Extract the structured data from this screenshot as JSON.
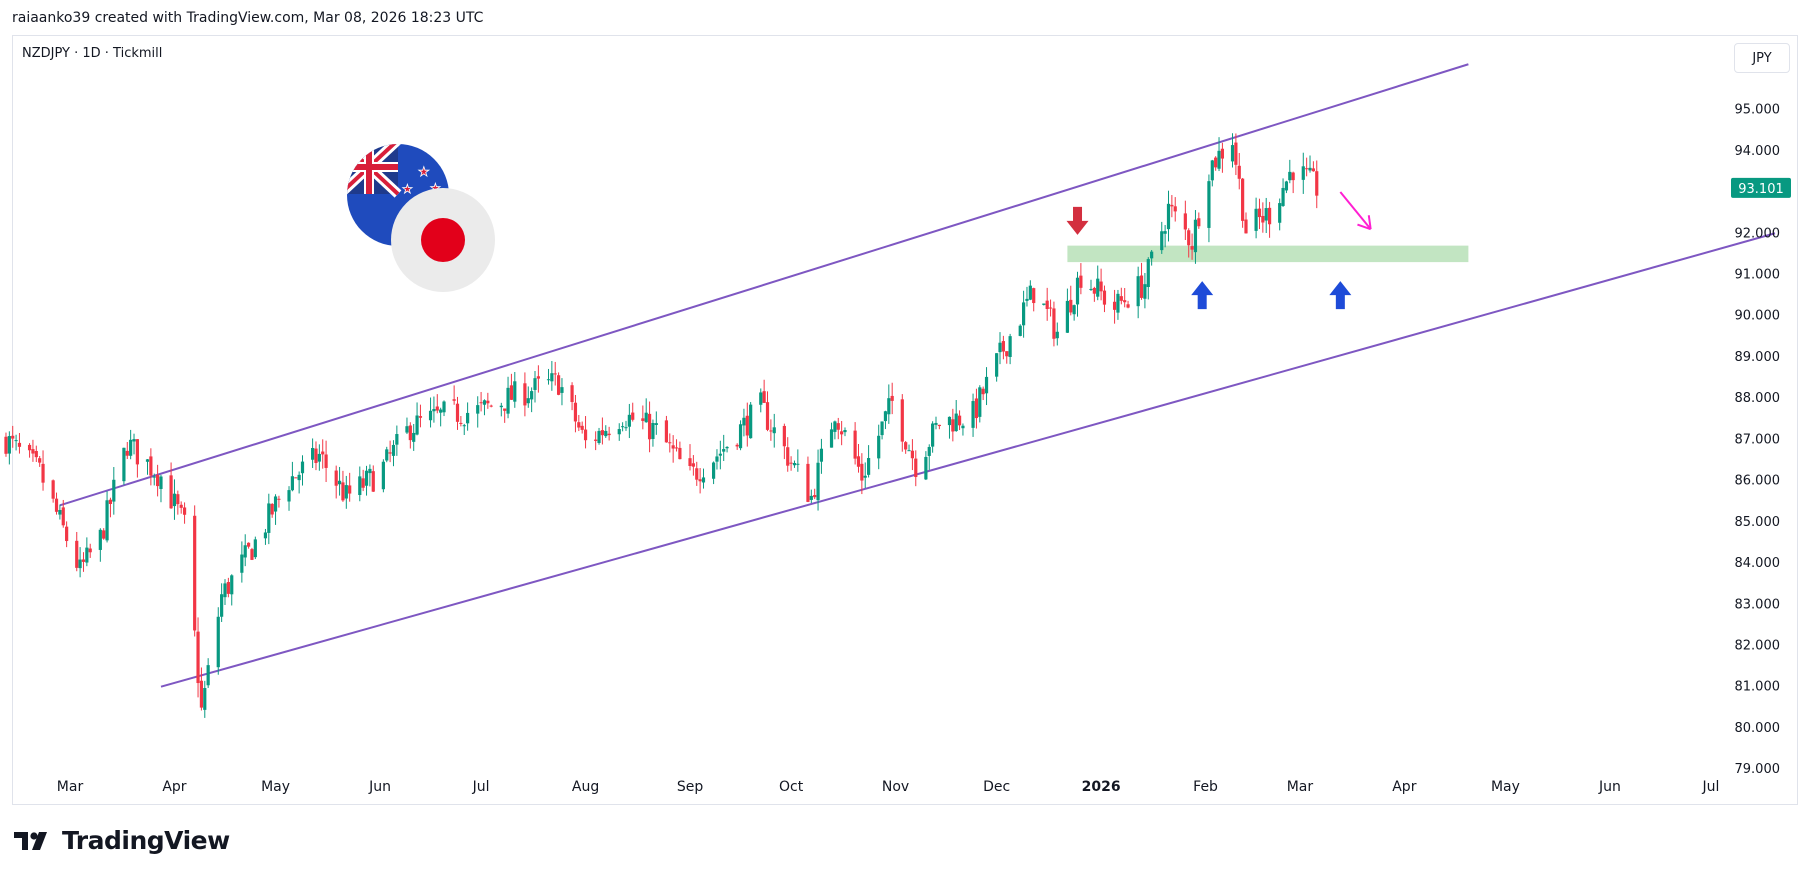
{
  "header": {
    "attribution": "raiaanko39 created with TradingView.com, Mar 08, 2026 18:23 UTC"
  },
  "symbol": {
    "label": "NZDJPY · 1D · Tickmill"
  },
  "currency_button": {
    "label": "JPY"
  },
  "footer": {
    "brand": "TradingView"
  },
  "colors": {
    "up": "#089981",
    "down": "#f23645",
    "channel": "#7e57c2",
    "zone": "#b7e1b7",
    "down_arrow": "#d32f3f",
    "up_arrow": "#1e4bd8",
    "projection": "#ff1fd2",
    "price_tag": "#089981"
  },
  "icons": {
    "flags": "nzd-jpy-flags-icon",
    "logo": "tradingview-logo-icon"
  },
  "chart_data": {
    "type": "candlestick",
    "ylim": [
      78.3,
      96.3
    ],
    "y_ticks": [
      95,
      94,
      93,
      92,
      91,
      90,
      89,
      88,
      87,
      86,
      85,
      84,
      83,
      82,
      81,
      80,
      79
    ],
    "y_tick_labels": [
      "95.000",
      "94.000",
      "93.000",
      "92.000",
      "91.000",
      "90.000",
      "89.000",
      "88.000",
      "87.000",
      "86.000",
      "85.000",
      "84.000",
      "83.000",
      "82.000",
      "81.000",
      "80.000",
      "79.000"
    ],
    "x_labels": [
      {
        "label": "Mar",
        "date": "2025-03-01"
      },
      {
        "label": "Apr",
        "date": "2025-04-01"
      },
      {
        "label": "May",
        "date": "2025-05-01"
      },
      {
        "label": "Jun",
        "date": "2025-06-01"
      },
      {
        "label": "Jul",
        "date": "2025-07-01"
      },
      {
        "label": "Aug",
        "date": "2025-08-01"
      },
      {
        "label": "Sep",
        "date": "2025-09-01"
      },
      {
        "label": "Oct",
        "date": "2025-10-01"
      },
      {
        "label": "Nov",
        "date": "2025-11-01"
      },
      {
        "label": "Dec",
        "date": "2025-12-01"
      },
      {
        "label": "2026",
        "date": "2026-01-01",
        "bold": true
      },
      {
        "label": "Feb",
        "date": "2026-02-01"
      },
      {
        "label": "Mar",
        "date": "2026-03-01"
      },
      {
        "label": "Apr",
        "date": "2026-04-01"
      },
      {
        "label": "May",
        "date": "2026-05-01"
      },
      {
        "label": "Jun",
        "date": "2026-06-01"
      },
      {
        "label": "Jul",
        "date": "2026-07-01"
      }
    ],
    "last_price": "93.101",
    "close_path": [
      {
        "date": "2025-02-10",
        "value": 87.0
      },
      {
        "date": "2025-02-20",
        "value": 86.2
      },
      {
        "date": "2025-03-04",
        "value": 83.8
      },
      {
        "date": "2025-03-10",
        "value": 84.6
      },
      {
        "date": "2025-03-18",
        "value": 86.9
      },
      {
        "date": "2025-03-28",
        "value": 86.1
      },
      {
        "date": "2025-04-04",
        "value": 84.9
      },
      {
        "date": "2025-04-09",
        "value": 80.4
      },
      {
        "date": "2025-04-15",
        "value": 83.2
      },
      {
        "date": "2025-04-25",
        "value": 84.5
      },
      {
        "date": "2025-05-05",
        "value": 86.0
      },
      {
        "date": "2025-05-14",
        "value": 86.6
      },
      {
        "date": "2025-05-22",
        "value": 85.6
      },
      {
        "date": "2025-06-01",
        "value": 86.2
      },
      {
        "date": "2025-06-10",
        "value": 87.3
      },
      {
        "date": "2025-06-20",
        "value": 87.6
      },
      {
        "date": "2025-07-01",
        "value": 87.7
      },
      {
        "date": "2025-07-12",
        "value": 88.1
      },
      {
        "date": "2025-07-24",
        "value": 88.4
      },
      {
        "date": "2025-08-01",
        "value": 86.9
      },
      {
        "date": "2025-08-12",
        "value": 87.6
      },
      {
        "date": "2025-08-22",
        "value": 87.2
      },
      {
        "date": "2025-09-01",
        "value": 86.1
      },
      {
        "date": "2025-09-10",
        "value": 86.7
      },
      {
        "date": "2025-09-22",
        "value": 87.8
      },
      {
        "date": "2025-09-30",
        "value": 86.6
      },
      {
        "date": "2025-10-07",
        "value": 85.6
      },
      {
        "date": "2025-10-14",
        "value": 87.7
      },
      {
        "date": "2025-10-22",
        "value": 86.1
      },
      {
        "date": "2025-10-31",
        "value": 87.9
      },
      {
        "date": "2025-11-07",
        "value": 86.4
      },
      {
        "date": "2025-11-14",
        "value": 87.4
      },
      {
        "date": "2025-11-24",
        "value": 87.6
      },
      {
        "date": "2025-12-03",
        "value": 89.2
      },
      {
        "date": "2025-12-12",
        "value": 90.6
      },
      {
        "date": "2025-12-19",
        "value": 89.6
      },
      {
        "date": "2025-12-26",
        "value": 91.0
      },
      {
        "date": "2026-01-05",
        "value": 90.2
      },
      {
        "date": "2026-01-14",
        "value": 90.8
      },
      {
        "date": "2026-01-21",
        "value": 92.6
      },
      {
        "date": "2026-01-28",
        "value": 91.8
      },
      {
        "date": "2026-02-02",
        "value": 93.6
      },
      {
        "date": "2026-02-09",
        "value": 94.3
      },
      {
        "date": "2026-02-13",
        "value": 92.1
      },
      {
        "date": "2026-02-20",
        "value": 92.5
      },
      {
        "date": "2026-02-27",
        "value": 93.6
      },
      {
        "date": "2026-03-06",
        "value": 93.1
      }
    ]
  },
  "drawings": {
    "channel_upper": {
      "start": {
        "date": "2025-02-26",
        "value": 85.4
      },
      "end": {
        "date": "2026-04-20",
        "value": 96.1
      }
    },
    "channel_lower": {
      "start": {
        "date": "2025-03-28",
        "value": 81.0
      },
      "end": {
        "date": "2026-07-20",
        "value": 92.0
      }
    },
    "zone": {
      "start": "2025-12-22",
      "end": "2026-04-20",
      "top": 91.7,
      "bottom": 91.3
    },
    "down_arrow": {
      "date": "2025-12-25",
      "value": 92.3
    },
    "up_arrows": [
      {
        "date": "2026-01-31",
        "value": 90.5
      },
      {
        "date": "2026-03-13",
        "value": 90.5
      }
    ],
    "projection": {
      "start": {
        "date": "2026-03-13",
        "value": 93.0
      },
      "end": {
        "date": "2026-03-22",
        "value": 92.1
      }
    }
  }
}
